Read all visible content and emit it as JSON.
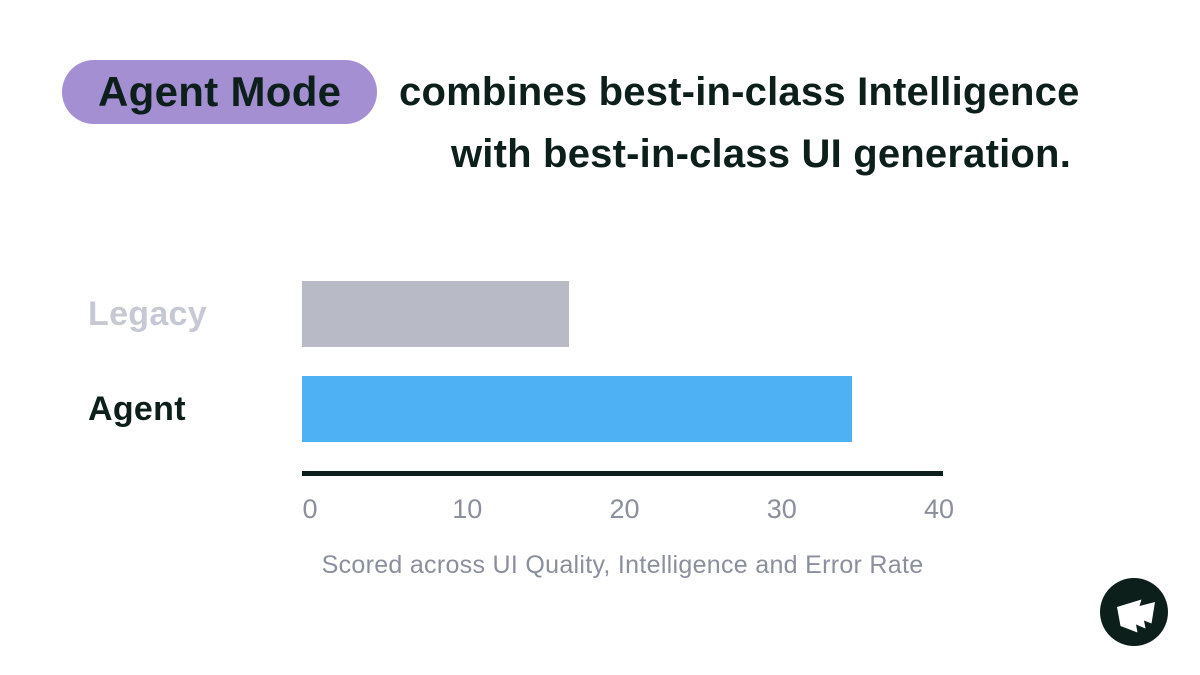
{
  "header": {
    "pill_label": "Agent Mode",
    "title_line1": "combines best-in-class Intelligence",
    "title_line2": "with best-in-class UI generation."
  },
  "chart_data": {
    "type": "bar",
    "orientation": "horizontal",
    "categories": [
      "Legacy",
      "Agent"
    ],
    "values": [
      17,
      35
    ],
    "bar_colors": [
      "#b8bbc6",
      "#4eb1f3"
    ],
    "label_colors": [
      "#c6c8d3",
      "#0d1f1b"
    ],
    "xlim": [
      0,
      40
    ],
    "xticks": [
      "0",
      "10",
      "20",
      "30",
      "40"
    ],
    "xlabel": "Scored across UI Quality, Intelligence and Error Rate",
    "grid": false,
    "legend": false
  },
  "colors": {
    "dark": "#0d1f1b",
    "accent_purple": "#a58fd3",
    "agent_blue": "#4eb1f3",
    "legacy_gray": "#b8bbc6",
    "muted_text": "#8b8f9d",
    "background": "#ffffff"
  },
  "logo": {
    "icon": "flag-icon"
  }
}
